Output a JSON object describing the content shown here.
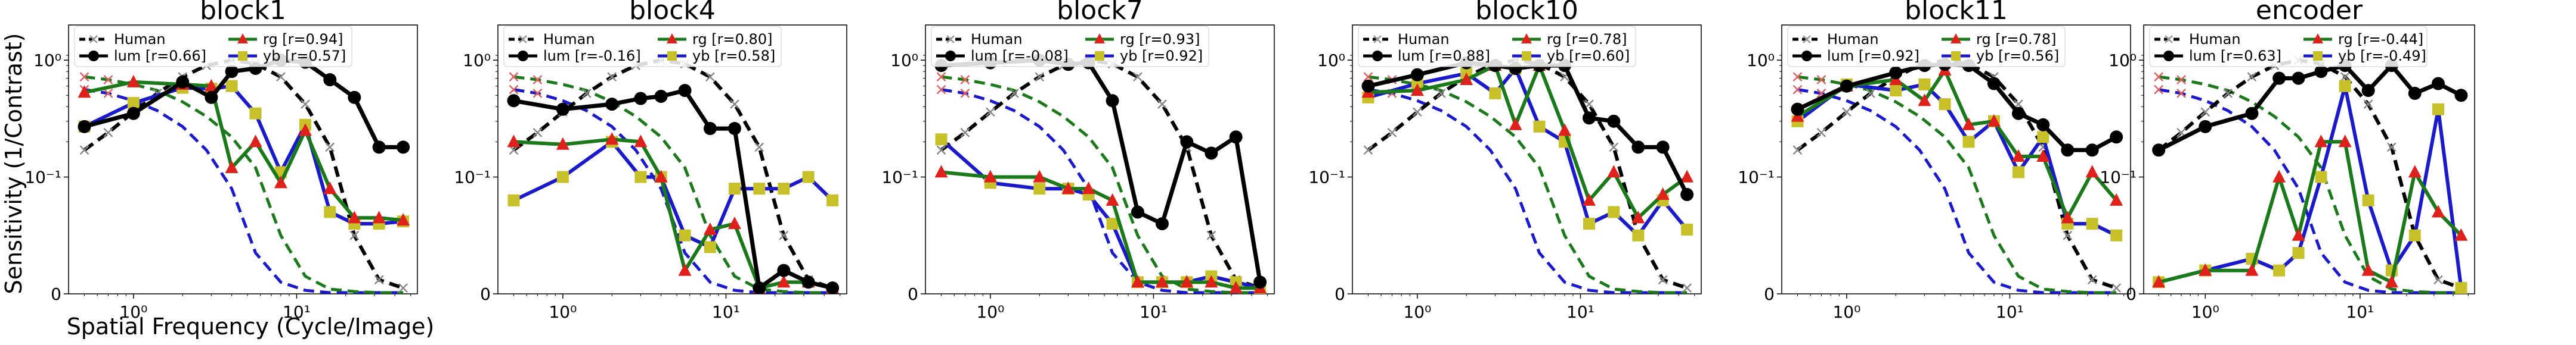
{
  "figure": {
    "ylabel": "Sensitivity (1/Contrast)",
    "xlabel": "Spatial Frequency (Cycle/Image)"
  },
  "colors": {
    "human": "#000000",
    "human_marker": "#a0a0a0",
    "lum": "#000000",
    "rg": "#1a7a1a",
    "rg_marker": "#e0201a",
    "yb": "#1a1acc",
    "yb_marker": "#c8c028",
    "human_rg": "#1a7a1a",
    "human_yb": "#1a1acc"
  },
  "tick_labels": {
    "y_top": "10⁰",
    "y_mid": "10⁻¹",
    "y_zero": "0",
    "x_one": "10⁰",
    "x_ten": "10¹"
  },
  "legend_names": {
    "human": "Human",
    "lum": "lum",
    "rg": "rg",
    "yb": "yb"
  },
  "human_curves": {
    "x": [
      0.5,
      0.7,
      1,
      1.4,
      2,
      2.8,
      4,
      5.6,
      8,
      11.3,
      16,
      22.6,
      32,
      45
    ],
    "lum": [
      0.17,
      0.24,
      0.36,
      0.52,
      0.72,
      0.9,
      1.0,
      0.93,
      0.72,
      0.42,
      0.18,
      0.05,
      0.012,
      0.005
    ],
    "rg": [
      0.72,
      0.68,
      0.62,
      0.55,
      0.44,
      0.33,
      0.22,
      0.12,
      0.05,
      0.015,
      0.004,
      0.002,
      0.001,
      0.001
    ],
    "yb": [
      0.56,
      0.52,
      0.45,
      0.37,
      0.27,
      0.17,
      0.09,
      0.035,
      0.01,
      0.003,
      0.001,
      0.001,
      0.001,
      0.001
    ]
  },
  "chart_data": [
    {
      "type": "line",
      "title": "block1",
      "yscale": "symlog",
      "xscale": "log",
      "legend": [
        "Human",
        "lum [r=0.66]",
        "rg    [r=0.94]",
        "yb    [r=0.57]"
      ],
      "x": [
        0.5,
        1,
        2,
        3,
        4,
        5.6,
        8,
        11.3,
        16,
        22.6,
        32,
        45
      ],
      "series": [
        {
          "name": "lum",
          "values": [
            0.27,
            0.35,
            0.65,
            0.48,
            0.8,
            0.85,
            1.0,
            0.96,
            0.68,
            0.48,
            0.18,
            0.18
          ]
        },
        {
          "name": "rg",
          "values": [
            0.53,
            0.65,
            0.62,
            0.6,
            0.12,
            0.2,
            0.095,
            0.25,
            0.09,
            0.065,
            0.065,
            0.063
          ]
        },
        {
          "name": "yb",
          "values": [
            0.27,
            0.43,
            0.58,
            0.57,
            0.6,
            0.35,
            0.11,
            0.28,
            0.07,
            0.06,
            0.06,
            0.062
          ]
        }
      ]
    },
    {
      "type": "line",
      "title": "block4",
      "yscale": "symlog",
      "xscale": "log",
      "legend": [
        "Human",
        "lum [r=-0.16]",
        "rg    [r=0.80]",
        "yb    [r=0.58]"
      ],
      "x": [
        0.5,
        1,
        2,
        3,
        4,
        5.6,
        8,
        11.3,
        16,
        22.6,
        32,
        45
      ],
      "series": [
        {
          "name": "lum",
          "values": [
            0.45,
            0.38,
            0.42,
            0.47,
            0.49,
            0.55,
            0.26,
            0.26,
            0.005,
            0.02,
            0.01,
            0.005
          ]
        },
        {
          "name": "rg",
          "values": [
            0.2,
            0.19,
            0.21,
            0.2,
            0.1,
            0.02,
            0.055,
            0.06,
            0.005,
            0.01,
            0.01,
            0.005
          ]
        },
        {
          "name": "yb",
          "values": [
            0.08,
            0.1,
            0.2,
            0.1,
            0.1,
            0.05,
            0.04,
            0.09,
            0.09,
            0.09,
            0.1,
            0.08
          ]
        }
      ]
    },
    {
      "type": "line",
      "title": "block7",
      "yscale": "symlog",
      "xscale": "log",
      "legend": [
        "Human",
        "lum [r=-0.08]",
        "rg    [r=0.93]",
        "yb    [r=0.92]"
      ],
      "x": [
        0.5,
        1,
        2,
        3,
        4,
        5.6,
        8,
        11.3,
        16,
        22.6,
        32,
        45
      ],
      "series": [
        {
          "name": "lum",
          "values": [
            0.9,
            0.95,
            1.0,
            0.92,
            0.95,
            0.45,
            0.07,
            0.06,
            0.2,
            0.16,
            0.22,
            0.01
          ]
        },
        {
          "name": "rg",
          "values": [
            0.11,
            0.1,
            0.1,
            0.09,
            0.09,
            0.08,
            0.01,
            0.01,
            0.01,
            0.01,
            0.005,
            0.005
          ]
        },
        {
          "name": "yb",
          "values": [
            0.21,
            0.095,
            0.09,
            0.09,
            0.085,
            0.06,
            0.01,
            0.01,
            0.01,
            0.015,
            0.01,
            0.005
          ]
        }
      ]
    },
    {
      "type": "line",
      "title": "block10",
      "yscale": "symlog",
      "xscale": "log",
      "legend": [
        "Human",
        "lum [r=0.88]",
        "rg    [r=0.78]",
        "yb    [r=0.60]"
      ],
      "x": [
        0.5,
        1,
        2,
        3,
        4,
        5.6,
        8,
        11.3,
        16,
        22.6,
        32,
        45
      ],
      "series": [
        {
          "name": "lum",
          "values": [
            0.6,
            0.75,
            0.95,
            0.9,
            0.85,
            0.9,
            0.9,
            0.32,
            0.3,
            0.18,
            0.18,
            0.085
          ]
        },
        {
          "name": "rg",
          "values": [
            0.53,
            0.55,
            0.68,
            0.9,
            0.28,
            0.9,
            0.25,
            0.08,
            0.11,
            0.065,
            0.085,
            0.1
          ]
        },
        {
          "name": "yb",
          "values": [
            0.48,
            0.63,
            0.77,
            0.52,
            0.85,
            0.27,
            0.2,
            0.06,
            0.07,
            0.05,
            0.08,
            0.055
          ]
        }
      ]
    },
    {
      "type": "line",
      "title": "block11",
      "yscale": "symlog",
      "xscale": "log",
      "legend": [
        "Human",
        "lum [r=0.92]",
        "rg    [r=0.78]",
        "yb    [r=0.56]"
      ],
      "x": [
        0.5,
        1,
        2,
        3,
        4,
        5.6,
        8,
        11.3,
        16,
        22.6,
        32,
        45
      ],
      "series": [
        {
          "name": "lum",
          "values": [
            0.38,
            0.6,
            0.78,
            0.9,
            0.92,
            0.9,
            0.63,
            0.35,
            0.28,
            0.17,
            0.17,
            0.22
          ]
        },
        {
          "name": "rg",
          "values": [
            0.33,
            0.6,
            0.68,
            0.45,
            0.82,
            0.28,
            0.3,
            0.15,
            0.15,
            0.065,
            0.11,
            0.08
          ]
        },
        {
          "name": "yb",
          "values": [
            0.3,
            0.62,
            0.55,
            0.62,
            0.42,
            0.2,
            0.3,
            0.11,
            0.22,
            0.06,
            0.06,
            0.05
          ]
        }
      ]
    },
    {
      "type": "line",
      "title": "encoder",
      "yscale": "symlog",
      "xscale": "log",
      "legend": [
        "Human",
        "lum [r=0.63]",
        "rg    [r=-0.44]",
        "yb    [r=-0.49]"
      ],
      "x": [
        0.5,
        1,
        2,
        3,
        4,
        5.6,
        8,
        11.3,
        16,
        22.6,
        32,
        45
      ],
      "series": [
        {
          "name": "lum",
          "values": [
            0.17,
            0.27,
            0.35,
            0.7,
            0.7,
            0.8,
            0.9,
            0.55,
            0.9,
            0.52,
            0.63,
            0.5
          ]
        },
        {
          "name": "rg",
          "values": [
            0.01,
            0.02,
            0.02,
            0.1,
            0.05,
            0.2,
            0.2,
            0.02,
            0.01,
            0.11,
            0.07,
            0.05
          ]
        },
        {
          "name": "yb",
          "values": [
            0.01,
            0.02,
            0.03,
            0.02,
            0.035,
            0.1,
            0.6,
            0.08,
            0.02,
            0.05,
            0.38,
            0.005
          ]
        }
      ]
    }
  ]
}
